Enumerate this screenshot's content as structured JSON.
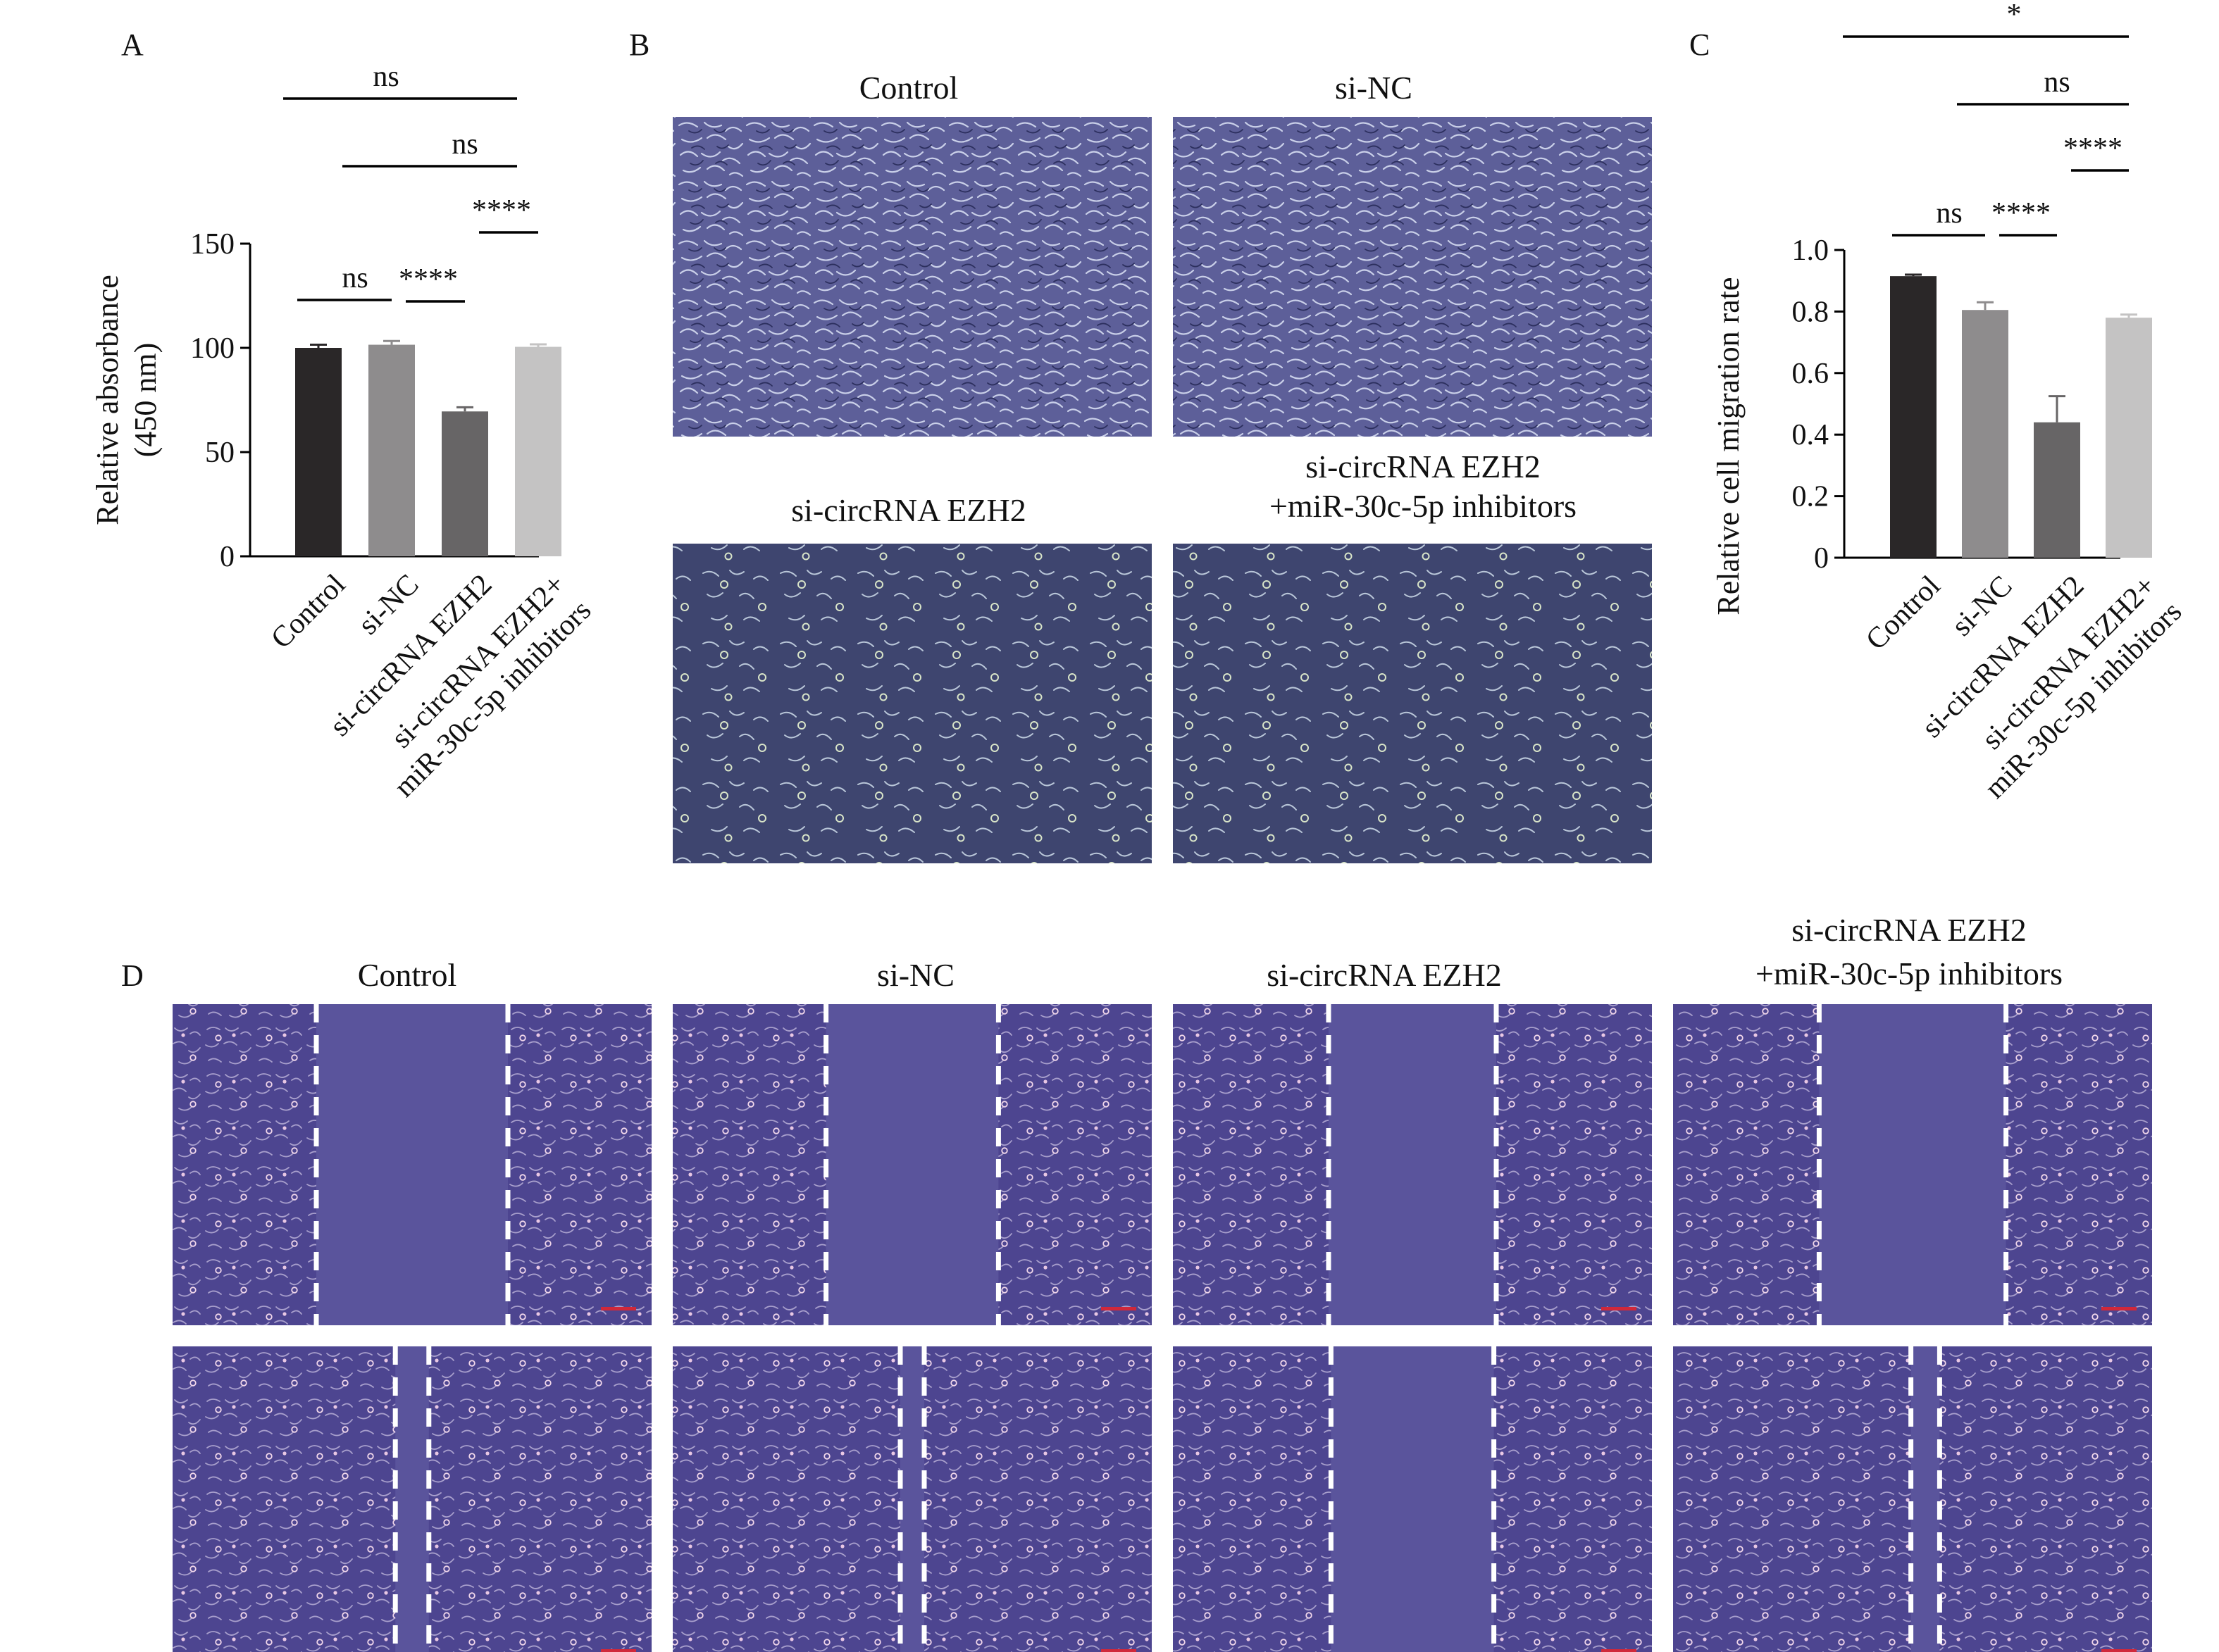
{
  "panel_labels": {
    "a": "A",
    "b": "B",
    "c": "C",
    "d": "D"
  },
  "chart_data": [
    {
      "type": "bar",
      "panel": "A",
      "ylabel_line1": "Relative absorbance",
      "ylabel_line2": "(450 nm)",
      "ylim": [
        0,
        150
      ],
      "yticks": [
        "0",
        "50",
        "100",
        "150"
      ],
      "categories": [
        "Control",
        "si-NC",
        "si-circRNA EZH2",
        "si-circRNA EZH2+ miR-30c-5p inhibitors"
      ],
      "tick_lines": [
        [
          "Control"
        ],
        [
          "si-NC"
        ],
        [
          "si-circRNA EZH2"
        ],
        [
          "si-circRNA EZH2+",
          "miR-30c-5p inhibitors"
        ]
      ],
      "values": [
        100,
        101.5,
        69.5,
        100.5
      ],
      "errors": [
        1.5,
        1.8,
        2.0,
        1.2
      ],
      "colors": [
        "#2a2728",
        "#8e8c8d",
        "#676566",
        "#c4c3c3"
      ],
      "significance": [
        {
          "from": 0,
          "to": 1,
          "label": "ns"
        },
        {
          "from": 1,
          "to": 2,
          "label": "****"
        },
        {
          "from": 2,
          "to": 3,
          "label": "****"
        },
        {
          "from": 1,
          "to": 3,
          "label": "ns"
        },
        {
          "from": 0,
          "to": 3,
          "label": "ns"
        }
      ]
    },
    {
      "type": "bar",
      "panel": "C",
      "ylabel": "Relative cell migration rate",
      "ylim": [
        0,
        1.0
      ],
      "yticks": [
        "0",
        "0.2",
        "0.4",
        "0.6",
        "0.8",
        "1.0"
      ],
      "categories": [
        "Control",
        "si-NC",
        "si-circRNA EZH2",
        "si-circRNA EZH2+ miR-30c-5p inhibitors"
      ],
      "tick_lines": [
        [
          "Control"
        ],
        [
          "si-NC"
        ],
        [
          "si-circRNA EZH2"
        ],
        [
          "si-circRNA EZH2+",
          "miR-30c-5p inhibitors"
        ]
      ],
      "values": [
        0.915,
        0.805,
        0.44,
        0.78
      ],
      "errors": [
        0.005,
        0.025,
        0.085,
        0.01
      ],
      "colors": [
        "#2a2728",
        "#8e8c8d",
        "#676566",
        "#c4c3c3"
      ],
      "significance": [
        {
          "from": 0,
          "to": 1,
          "label": "ns"
        },
        {
          "from": 1,
          "to": 2,
          "label": "****"
        },
        {
          "from": 2,
          "to": 3,
          "label": "****"
        },
        {
          "from": 1,
          "to": 3,
          "label": "ns"
        },
        {
          "from": 0,
          "to": 3,
          "label": "*"
        }
      ]
    }
  ],
  "panel_b": {
    "images": [
      {
        "label_lines": [
          "Control"
        ],
        "kind": "dense"
      },
      {
        "label_lines": [
          "si-NC"
        ],
        "kind": "dense"
      },
      {
        "label_lines": [
          "si-circRNA EZH2"
        ],
        "kind": "sparse"
      },
      {
        "label_lines": [
          "si-circRNA EZH2",
          "+miR-30c-5p inhibitors"
        ],
        "kind": "sparse"
      }
    ]
  },
  "panel_d": {
    "columns": [
      {
        "label_lines": [
          "Control"
        ]
      },
      {
        "label_lines": [
          "si-NC"
        ]
      },
      {
        "label_lines": [
          "si-circRNA EZH2"
        ]
      },
      {
        "label_lines": [
          "si-circRNA EZH2",
          "+miR-30c-5p inhibitors"
        ]
      }
    ],
    "gap_fraction_0h": [
      0.4,
      0.36,
      0.35,
      0.39
    ],
    "gap_fraction_24h": [
      0.07,
      0.05,
      0.34,
      0.06
    ]
  },
  "colors": {
    "bg_b_dense": "#5d5f99",
    "bg_b_sparse": "#3e456f",
    "bg_d": "#4d4590",
    "bg_d_gap": "#5a549c",
    "cell_light": "#a9b2d6",
    "cell_d": "#b9a7d0",
    "dash": "#ffffff",
    "scalebar": "#d0283a"
  }
}
